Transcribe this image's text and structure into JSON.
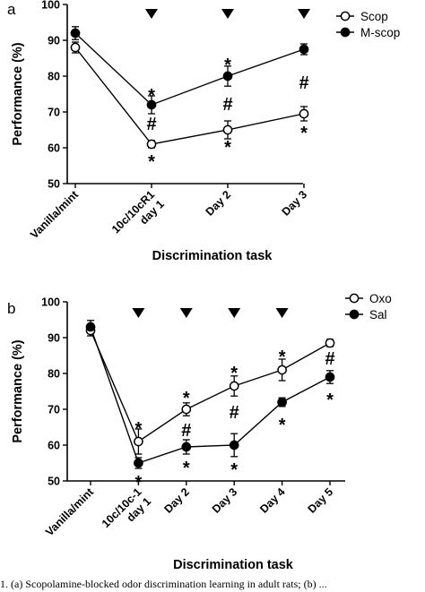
{
  "chart_data": [
    {
      "panel_label": "a",
      "type": "line",
      "ylabel": "Performance (%)",
      "xlabel": "Discrimination task",
      "ylim": [
        50,
        100
      ],
      "yticks": [
        50,
        60,
        70,
        80,
        90,
        100
      ],
      "categories": [
        [
          "Vanilla/mint"
        ],
        [
          "10c/10cR1",
          "day 1"
        ],
        [
          "Day 2"
        ],
        [
          "Day 3"
        ]
      ],
      "legend_position": "top-right",
      "series": [
        {
          "name": "Scop",
          "marker": "open",
          "values": [
            88,
            61,
            65,
            69.5
          ],
          "errors": [
            1.5,
            1.0,
            2.5,
            2.0
          ]
        },
        {
          "name": "M-scop",
          "marker": "filled",
          "values": [
            92,
            72,
            80,
            87.5
          ],
          "errors": [
            1.8,
            2.5,
            2.8,
            1.5
          ]
        }
      ],
      "triangles_at": [
        1,
        2,
        3
      ],
      "annotations": [
        {
          "text": "*",
          "x": 1,
          "value": 76
        },
        {
          "text": "#",
          "x": 1,
          "value": 66.5
        },
        {
          "text": "*",
          "x": 1,
          "value": 57.5
        },
        {
          "text": "*",
          "x": 2,
          "value": 84.5
        },
        {
          "text": "#",
          "x": 2,
          "value": 72
        },
        {
          "text": "*",
          "x": 2,
          "value": 61.5
        },
        {
          "text": "#",
          "x": 3,
          "value": 78
        },
        {
          "text": "*",
          "x": 3,
          "value": 65.5
        }
      ]
    },
    {
      "panel_label": "b",
      "type": "line",
      "ylabel": "Performance (%)",
      "xlabel": "Discrimination task",
      "ylim": [
        50,
        100
      ],
      "yticks": [
        50,
        60,
        70,
        80,
        90,
        100
      ],
      "categories": [
        [
          "Vanilla/mint"
        ],
        [
          "10c/10c-1",
          "day 1"
        ],
        [
          "Day 2"
        ],
        [
          "Day 3"
        ],
        [
          "Day 4"
        ],
        [
          "Day 5"
        ]
      ],
      "legend_position": "top-right",
      "series": [
        {
          "name": "Oxo",
          "marker": "open",
          "values": [
            92,
            61,
            70,
            76.5,
            81,
            88.5
          ],
          "errors": [
            1.5,
            3.5,
            1.8,
            2.8,
            3.0,
            1.0
          ]
        },
        {
          "name": "Sal",
          "marker": "filled",
          "values": [
            93,
            55,
            59.5,
            60,
            72,
            79
          ],
          "errors": [
            1.8,
            1.5,
            2.0,
            3.2,
            1.2,
            1.8
          ]
        }
      ],
      "triangles_at": [
        1,
        2,
        3,
        4
      ],
      "annotations": [
        {
          "text": "*",
          "x": 1,
          "value": 66
        },
        {
          "text": "*",
          "x": 1,
          "value": 51
        },
        {
          "text": "*",
          "x": 2,
          "value": 74.5
        },
        {
          "text": "#",
          "x": 2,
          "value": 64
        },
        {
          "text": "*",
          "x": 2,
          "value": 55
        },
        {
          "text": "*",
          "x": 3,
          "value": 81.5
        },
        {
          "text": "#",
          "x": 3,
          "value": 69
        },
        {
          "text": "*",
          "x": 3,
          "value": 54.5
        },
        {
          "text": "*",
          "x": 4,
          "value": 86
        },
        {
          "text": "*",
          "x": 4,
          "value": 67
        },
        {
          "text": "#",
          "x": 5,
          "value": 84
        },
        {
          "text": "*",
          "x": 5,
          "value": 74
        }
      ]
    }
  ],
  "caption": "1. (a) Scopolamine-blocked odor discrimination learning in adult rats; (b) ..."
}
